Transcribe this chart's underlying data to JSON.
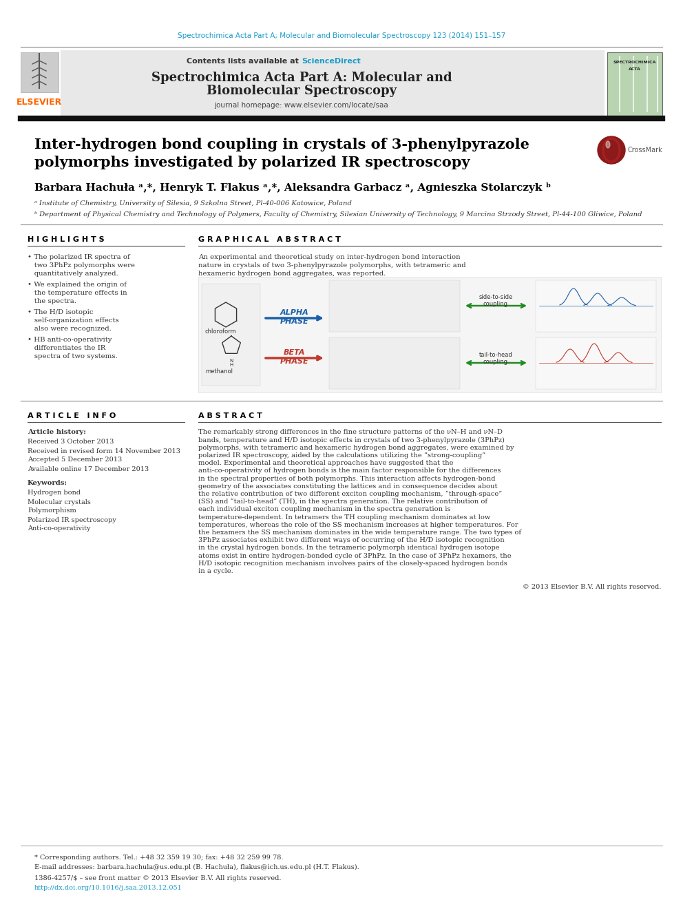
{
  "journal_header_text": "Spectrochimica Acta Part A; Molecular and Biomolecular Spectroscopy 123 (2014) 151–157",
  "journal_header_color": "#1a9bc7",
  "journal_name_line1": "Spectrochimica Acta Part A: Molecular and",
  "journal_name_line2": "Biomolecular Spectroscopy",
  "journal_homepage": "journal homepage: www.elsevier.com/locate/saa",
  "contents_text": "Contents lists available at ",
  "sciencedirect_text": "ScienceDirect",
  "sciencedirect_color": "#1a9bc7",
  "elsevier_color": "#ff6600",
  "paper_title_line1": "Inter-hydrogen bond coupling in crystals of 3-phenylpyrazole",
  "paper_title_line2": "polymorphs investigated by polarized IR spectroscopy",
  "authors_full": "Barbara Hachuła ᵃ,*, Henryk T. Flakus ᵃ,*, Aleksandra Garbacz ᵃ, Agnieszka Stolarczyk ᵇ",
  "affil_a": "ᵃ Institute of Chemistry, University of Silesia, 9 Szkolna Street, Pl-40-006 Katowice, Poland",
  "affil_b": "ᵇ Department of Physical Chemistry and Technology of Polymers, Faculty of Chemistry, Silesian University of Technology, 9 Marcina Strzody Street, Pl-44-100 Gliwice, Poland",
  "highlights_title": "H I G H L I G H T S",
  "highlights": [
    "The polarized IR spectra of two 3PhPz polymorphs were quantitatively analyzed.",
    "We explained the origin of the temperature effects in the spectra.",
    "The H/D isotopic self-organization effects also were recognized.",
    "HB anti-co-operativity differentiates the IR spectra of two systems."
  ],
  "graphical_abstract_title": "G R A P H I C A L   A B S T R A C T",
  "graphical_abstract_text": "An experimental and theoretical study on inter-hydrogen bond interaction nature in crystals of two 3-phenylpyrazole polymorphs, with tetrameric and hexameric hydrogen bond aggregates, was reported.",
  "article_info_title": "A R T I C L E   I N F O",
  "article_history_title": "Article history:",
  "received": "Received 3 October 2013",
  "revised": "Received in revised form 14 November 2013",
  "accepted": "Accepted 5 December 2013",
  "available": "Available online 17 December 2013",
  "keywords_title": "Keywords:",
  "keywords": [
    "Hydrogen bond",
    "Molecular crystals",
    "Polymorphism",
    "Polarized IR spectroscopy",
    "Anti-co-operativity"
  ],
  "abstract_title": "A B S T R A C T",
  "abstract_text": "The remarkably strong differences in the fine structure patterns of the νN–H and νN–D bands, temperature and H/D isotopic effects in crystals of two 3-phenylpyrazole (3PhPz) polymorphs, with tetrameric and hexameric hydrogen bond aggregates, were examined by polarized IR spectroscopy, aided by the calculations utilizing the “strong-coupling” model. Experimental and theoretical approaches have suggested that the anti-co-operativity of hydrogen bonds is the main factor responsible for the differences in the spectral properties of both polymorphs. This interaction affects hydrogen-bond geometry of the associates constituting the lattices and in consequence decides about the relative contribution of two different exciton coupling mechanism, “through-space” (SS) and “tail-to-head” (TH), in the spectra generation. The relative contribution of each individual exciton coupling mechanism in the spectra generation is temperature-dependent. In tetramers the TH coupling mechanism dominates at low temperatures, whereas the role of the SS mechanism increases at higher temperatures. For the hexamers the SS mechanism dominates in the wide temperature range. The two types of 3PhPz associates exhibit two different ways of occurring of the H/D isotopic recognition in the crystal hydrogen bonds. In the tetrameric polymorph identical hydrogen isotope atoms exist in entire hydrogen-bonded cycle of 3PhPz. In the case of 3PhPz hexamers, the H/D isotopic recognition mechanism involves pairs of the closely-spaced hydrogen bonds in a cycle.",
  "copyright_text": "© 2013 Elsevier B.V. All rights reserved.",
  "footnote_corresp": "* Corresponding authors. Tel.: +48 32 359 19 30; fax: +48 32 259 99 78.",
  "footnote_email": "E-mail addresses: barbara.hachula@us.edu.pl (B. Hachuła), flakus@ich.us.edu.pl (H.T. Flakus).",
  "footnote_issn": "1386-4257/$ – see front matter © 2013 Elsevier B.V. All rights reserved.",
  "footnote_doi": "http://dx.doi.org/10.1016/j.saa.2013.12.051",
  "footnote_doi_color": "#1a9bc7",
  "background_color": "#ffffff",
  "header_bg_color": "#e8e8e8",
  "thick_line_color": "#1a1a1a",
  "thin_line_color": "#888888"
}
